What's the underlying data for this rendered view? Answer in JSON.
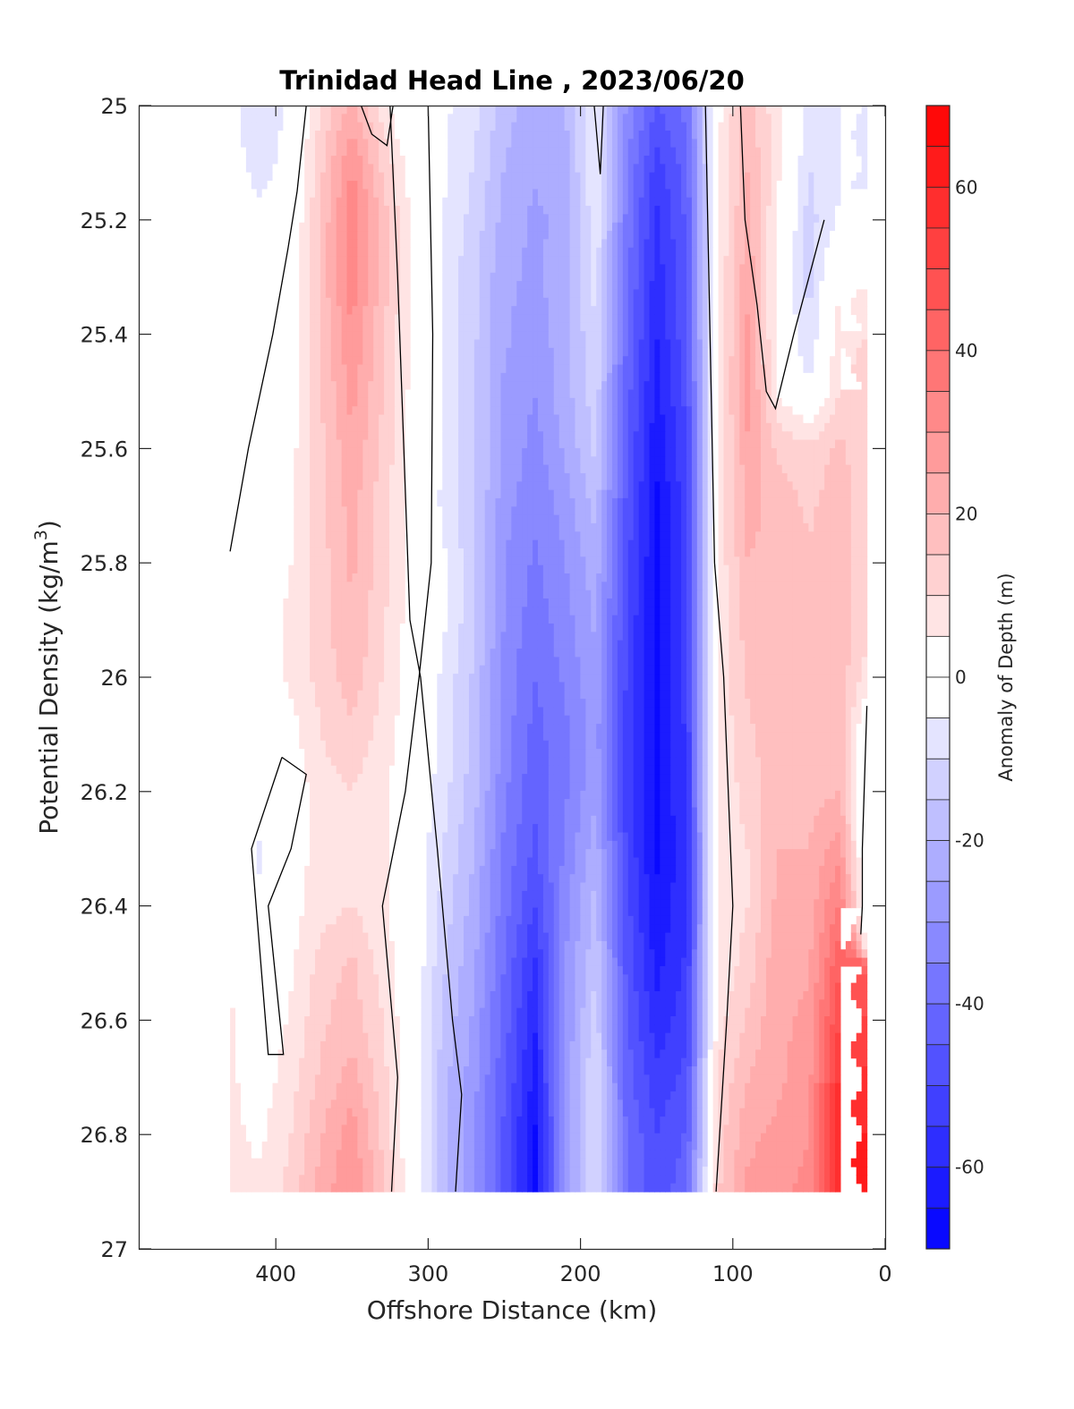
{
  "chart_data": {
    "type": "heatmap",
    "subtype": "filled-contour",
    "title": "Trinidad Head Line , 2023/06/20",
    "xlabel": "Offshore Distance (km)",
    "ylabel_main": "Potential Density (kg/m",
    "ylabel_sup": "3",
    "ylabel_close": ")",
    "colorbar_label": "Anomaly of Depth (m)",
    "xlim": [
      490,
      0
    ],
    "ylim": [
      25,
      27
    ],
    "x_reversed": true,
    "y_reversed": true,
    "xticks": [
      400,
      300,
      200,
      100,
      0
    ],
    "xtick_labels": [
      "400",
      "300",
      "200",
      "100",
      "0"
    ],
    "yticks": [
      25,
      25.2,
      25.4,
      25.6,
      25.8,
      26,
      26.2,
      26.4,
      26.6,
      26.8,
      27
    ],
    "ytick_labels": [
      "25",
      "25.2",
      "25.4",
      "25.6",
      "25.8",
      "26",
      "26.2",
      "26.4",
      "26.6",
      "26.8",
      "27"
    ],
    "clim": [
      -70,
      70
    ],
    "contour_step": 5,
    "colorbar_ticks": [
      60,
      40,
      20,
      0,
      -20,
      -40,
      -60
    ],
    "colorbar_tick_labels": [
      "60",
      "40",
      "20",
      "0",
      "-20",
      "-40",
      "-60"
    ],
    "colormap_low": "#0000ff",
    "colormap_mid": "#ffffff",
    "colormap_high": "#ff0000",
    "zero_contour_color": "#000000",
    "x": [
      430,
      410,
      390,
      370,
      350,
      330,
      310,
      290,
      270,
      250,
      230,
      210,
      190,
      170,
      150,
      130,
      110,
      90,
      70,
      50,
      30,
      12
    ],
    "y": [
      25.0,
      25.1,
      25.2,
      25.3,
      25.4,
      25.5,
      25.6,
      25.7,
      25.8,
      25.9,
      26.0,
      26.1,
      26.2,
      26.3,
      26.4,
      26.5,
      26.6,
      26.7,
      26.8,
      26.9
    ],
    "values": [
      [
        -4,
        -8,
        -4,
        10,
        22,
        8,
        -5,
        -4,
        -8,
        -18,
        -22,
        -20,
        -6,
        -30,
        -45,
        -38,
        3,
        18,
        6,
        -6,
        -6,
        null
      ],
      [
        -3,
        -7,
        -3,
        14,
        30,
        14,
        2,
        -4,
        -10,
        -20,
        -24,
        -22,
        -4,
        -34,
        -52,
        -42,
        4,
        20,
        6,
        -10,
        -6,
        null
      ],
      [
        -2,
        -4,
        -1,
        16,
        34,
        18,
        3,
        -5,
        -12,
        -22,
        -26,
        -24,
        -6,
        -36,
        -56,
        -44,
        4,
        22,
        4,
        -12,
        -4,
        null
      ],
      [
        0,
        0,
        1,
        17,
        33,
        18,
        3,
        -6,
        -14,
        -24,
        -26,
        -22,
        -8,
        -38,
        -58,
        -45,
        5,
        24,
        2,
        -12,
        4,
        null
      ],
      [
        0,
        0,
        2,
        16,
        30,
        16,
        3,
        -6,
        -14,
        -24,
        -28,
        -22,
        -10,
        -40,
        -60,
        -46,
        5,
        26,
        2,
        -10,
        8,
        null
      ],
      [
        0,
        0,
        2,
        15,
        27,
        15,
        3,
        -6,
        -14,
        -26,
        -30,
        -22,
        -12,
        -42,
        -62,
        -48,
        5,
        28,
        4,
        -4,
        10,
        12
      ],
      [
        0,
        0,
        3,
        14,
        24,
        14,
        3,
        -6,
        -14,
        -26,
        -32,
        -24,
        -14,
        -44,
        -64,
        -50,
        6,
        24,
        14,
        12,
        16,
        12
      ],
      [
        0,
        1,
        4,
        14,
        22,
        12,
        2,
        -6,
        -14,
        -28,
        -34,
        -28,
        -18,
        -46,
        -66,
        -52,
        6,
        22,
        18,
        14,
        18,
        12
      ],
      [
        0,
        1,
        5,
        13,
        21,
        12,
        2,
        -4,
        -14,
        -30,
        -36,
        -30,
        -22,
        -48,
        -66,
        -52,
        6,
        20,
        18,
        16,
        18,
        12
      ],
      [
        2,
        2,
        6,
        13,
        20,
        11,
        2,
        -4,
        -14,
        -30,
        -38,
        -32,
        -24,
        -50,
        -66,
        -52,
        6,
        18,
        18,
        16,
        18,
        12
      ],
      [
        3,
        2,
        6,
        12,
        18,
        10,
        1,
        -6,
        -16,
        -32,
        -40,
        -34,
        -26,
        -50,
        -66,
        -52,
        6,
        16,
        18,
        16,
        18,
        8
      ],
      [
        2,
        0,
        3,
        10,
        14,
        8,
        1,
        -6,
        -16,
        -32,
        -42,
        -36,
        -28,
        -52,
        -66,
        -54,
        6,
        14,
        18,
        16,
        18,
        -2
      ],
      [
        1,
        -2,
        1,
        8,
        10,
        6,
        0,
        -8,
        -18,
        -34,
        -44,
        -36,
        -26,
        -52,
        -66,
        -54,
        6,
        12,
        20,
        18,
        20,
        -4
      ],
      [
        0,
        -6,
        2,
        7,
        8,
        6,
        0,
        -10,
        -20,
        -36,
        -46,
        -34,
        -22,
        -50,
        -66,
        -56,
        6,
        10,
        20,
        20,
        28,
        -6
      ],
      [
        2,
        -4,
        3,
        8,
        10,
        6,
        0,
        -12,
        -22,
        -38,
        -50,
        -32,
        -18,
        -48,
        -64,
        -56,
        6,
        10,
        22,
        22,
        36,
        -2
      ],
      [
        4,
        -2,
        4,
        12,
        16,
        8,
        0,
        -14,
        -24,
        -40,
        -56,
        -30,
        -16,
        -46,
        -62,
        -54,
        6,
        12,
        24,
        24,
        44,
        null
      ],
      [
        6,
        0,
        6,
        14,
        18,
        10,
        0,
        -16,
        -26,
        -42,
        -60,
        -30,
        -12,
        -44,
        -58,
        -52,
        8,
        16,
        24,
        26,
        50,
        null
      ],
      [
        6,
        2,
        8,
        16,
        22,
        12,
        0,
        -18,
        -28,
        -44,
        -62,
        -28,
        -10,
        -42,
        -54,
        -48,
        10,
        20,
        24,
        28,
        56,
        null
      ],
      [
        6,
        4,
        10,
        20,
        28,
        14,
        0,
        -18,
        -30,
        -46,
        -66,
        -28,
        -10,
        -40,
        -50,
        -44,
        12,
        24,
        26,
        30,
        60,
        null
      ],
      [
        6,
        6,
        12,
        22,
        30,
        16,
        0,
        -18,
        -30,
        -46,
        -66,
        -28,
        -10,
        -40,
        -48,
        -42,
        14,
        26,
        28,
        32,
        60,
        null
      ]
    ],
    "zero_contours": [
      [
        [
          380,
          25.0
        ],
        [
          386,
          25.15
        ],
        [
          392,
          25.25
        ],
        [
          402,
          25.4
        ],
        [
          418,
          25.6
        ],
        [
          430,
          25.78
        ]
      ],
      [
        [
          325,
          25.0
        ],
        [
          320,
          25.3
        ],
        [
          316,
          25.6
        ],
        [
          312,
          25.9
        ],
        [
          305,
          26.0
        ],
        [
          294,
          26.3
        ],
        [
          284,
          26.6
        ],
        [
          278,
          26.73
        ],
        [
          282,
          26.9
        ]
      ],
      [
        [
          300,
          25.0
        ],
        [
          297,
          25.4
        ],
        [
          298,
          25.8
        ],
        [
          306,
          26.0
        ],
        [
          315,
          26.2
        ],
        [
          330,
          26.4
        ],
        [
          320,
          26.7
        ],
        [
          324,
          26.9
        ]
      ],
      [
        [
          344,
          25.0
        ],
        [
          337,
          25.05
        ],
        [
          327,
          25.07
        ],
        [
          323,
          25.0
        ]
      ],
      [
        [
          191,
          25.0
        ],
        [
          187,
          25.12
        ],
        [
          185,
          25.0
        ]
      ],
      [
        [
          118,
          25.0
        ],
        [
          115,
          25.4
        ],
        [
          112,
          25.8
        ],
        [
          106,
          26.0
        ],
        [
          100,
          26.4
        ],
        [
          104,
          26.6
        ],
        [
          111,
          26.9
        ]
      ],
      [
        [
          95,
          25.0
        ],
        [
          92,
          25.2
        ],
        [
          84,
          25.35
        ],
        [
          78,
          25.5
        ],
        [
          72,
          25.53
        ],
        [
          60,
          25.4
        ],
        [
          40,
          25.2
        ]
      ],
      [
        [
          12,
          26.05
        ],
        [
          15,
          26.3
        ],
        [
          15,
          26.4
        ],
        [
          16,
          26.45
        ]
      ],
      [
        [
          396,
          26.14
        ],
        [
          416,
          26.3
        ],
        [
          405,
          26.66
        ],
        [
          395,
          26.66
        ],
        [
          405,
          26.4
        ],
        [
          390,
          26.3
        ],
        [
          380,
          26.17
        ],
        [
          396,
          26.14
        ]
      ]
    ]
  }
}
